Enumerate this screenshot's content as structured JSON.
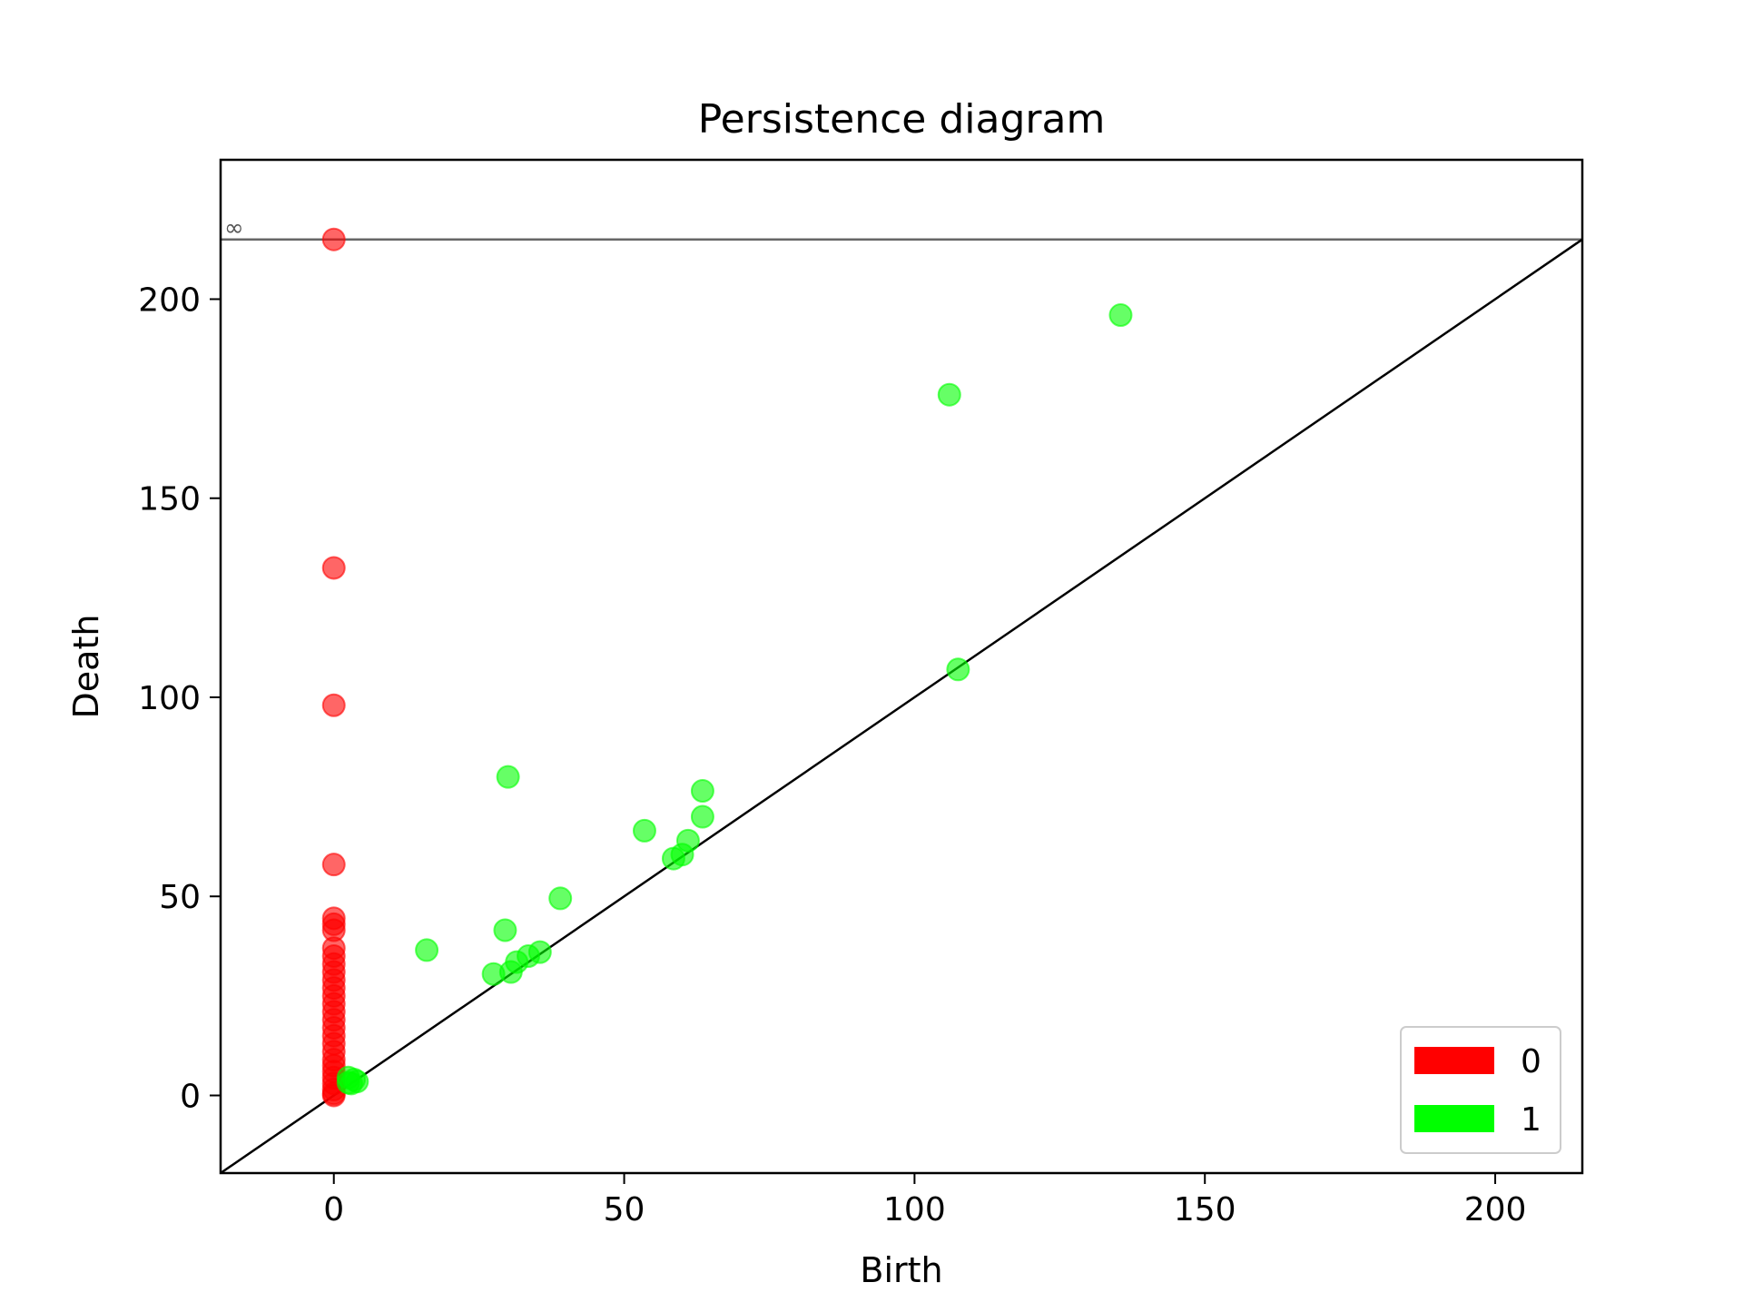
{
  "chart_data": {
    "type": "scatter",
    "title": "Persistence diagram",
    "xlabel": "Birth",
    "ylabel": "Death",
    "xlim": [
      -19.5,
      215
    ],
    "ylim": [
      -19.5,
      235
    ],
    "xticks": [
      0,
      50,
      100,
      150,
      200
    ],
    "yticks": [
      0,
      50,
      100,
      150,
      200
    ],
    "infinity_value": 215,
    "infinity_label": "∞",
    "diagonal": true,
    "grid": false,
    "legend_position": "lower right",
    "series": [
      {
        "name": "0",
        "color": "#ff0000",
        "points": [
          [
            0,
            215
          ],
          [
            0,
            132.5
          ],
          [
            0,
            98
          ],
          [
            0,
            58
          ],
          [
            0,
            44.5
          ],
          [
            0,
            43
          ],
          [
            0,
            41.5
          ],
          [
            0,
            37
          ],
          [
            0,
            35
          ],
          [
            0,
            33
          ],
          [
            0,
            31
          ],
          [
            0,
            29
          ],
          [
            0,
            27
          ],
          [
            0,
            25
          ],
          [
            0,
            23
          ],
          [
            0,
            21
          ],
          [
            0,
            19
          ],
          [
            0,
            17
          ],
          [
            0,
            15
          ],
          [
            0,
            13
          ],
          [
            0,
            11
          ],
          [
            0,
            9
          ],
          [
            0,
            7.5
          ],
          [
            0,
            6
          ],
          [
            0,
            4.5
          ],
          [
            0,
            3
          ],
          [
            0,
            1.5
          ],
          [
            0,
            0.5
          ],
          [
            0,
            0
          ]
        ]
      },
      {
        "name": "1",
        "color": "#00ff00",
        "points": [
          [
            135.5,
            196
          ],
          [
            106,
            176
          ],
          [
            107.5,
            107
          ],
          [
            30,
            80
          ],
          [
            63.5,
            76.5
          ],
          [
            63.5,
            70
          ],
          [
            53.5,
            66.5
          ],
          [
            61,
            64
          ],
          [
            60,
            60.5
          ],
          [
            58.5,
            59.5
          ],
          [
            39,
            49.5
          ],
          [
            29.5,
            41.5
          ],
          [
            16,
            36.5
          ],
          [
            35.5,
            36
          ],
          [
            33.5,
            35
          ],
          [
            31.5,
            33.5
          ],
          [
            30.5,
            31
          ],
          [
            27.5,
            30.5
          ],
          [
            2.5,
            4.5
          ],
          [
            3.5,
            4
          ],
          [
            4,
            3.5
          ],
          [
            3,
            3
          ],
          [
            2.5,
            3.2
          ]
        ]
      }
    ]
  }
}
